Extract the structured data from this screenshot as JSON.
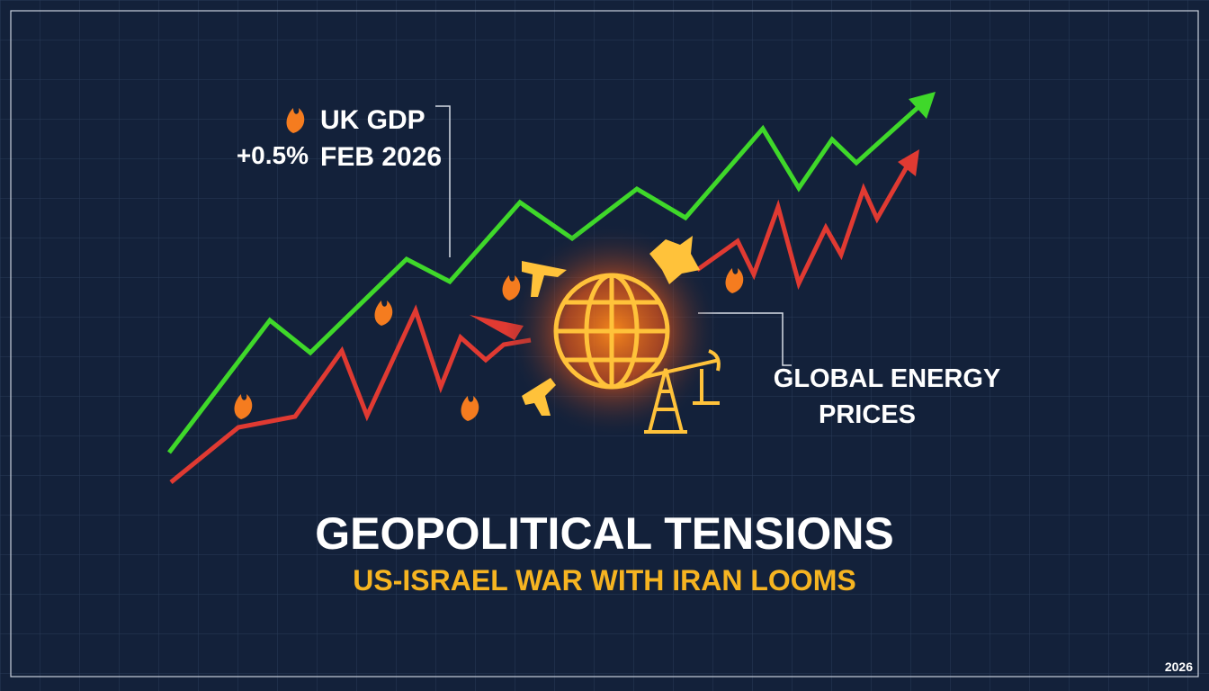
{
  "annotations": {
    "gdp": {
      "label": "UK GDP",
      "change": "+0.5%",
      "date": "FEB 2026"
    },
    "energy": {
      "lines": [
        "GLOBAL ENERGY",
        "PRICES"
      ]
    }
  },
  "title": "GEOPOLITICAL TENSIONS",
  "subtitle": "US-ISRAEL WAR WITH IRAN LOOMS",
  "footer": "2026"
}
